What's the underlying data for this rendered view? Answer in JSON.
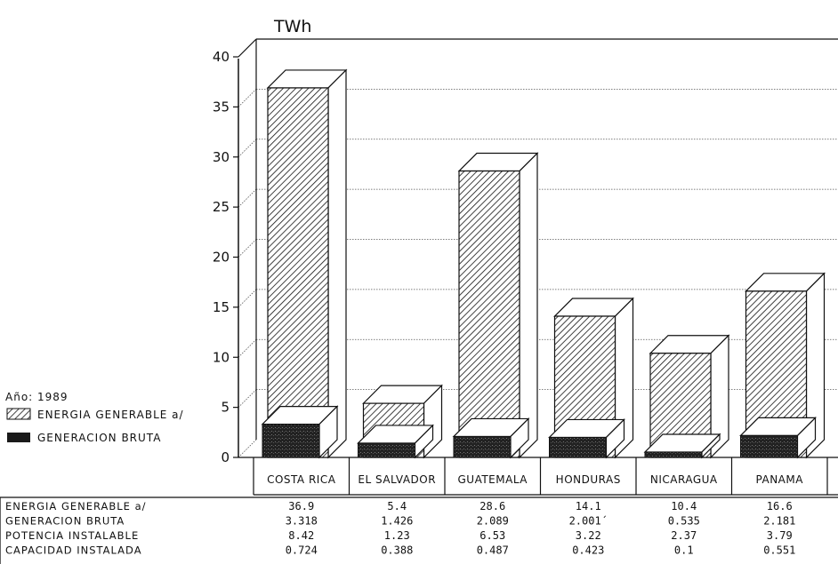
{
  "chart_data": {
    "type": "bar",
    "unit": "TWh",
    "ylim": [
      0,
      40
    ],
    "y_ticks": [
      "0",
      "5",
      "10",
      "15",
      "20",
      "25",
      "30",
      "35",
      "40"
    ],
    "categories": [
      "COSTA RICA",
      "EL SALVADOR",
      "GUATEMALA",
      "HONDURAS",
      "NICARAGUA",
      "PANAMA"
    ],
    "series": [
      {
        "name": "ENERGIA GENERABLE a/",
        "values": [
          36.9,
          5.4,
          28.6,
          14.1,
          10.4,
          16.6
        ],
        "pattern": "diagonal-hatch"
      },
      {
        "name": "GENERACION BRUTA",
        "values": [
          3.318,
          1.426,
          2.089,
          2.001,
          0.535,
          2.181
        ],
        "pattern": "solid-dark"
      }
    ],
    "legend": {
      "year_label": "Año: 1989",
      "placement": "left"
    },
    "grid": true
  },
  "table": {
    "rows": [
      {
        "label": "ENERGIA GENERABLE a/",
        "values": [
          "36.9",
          "5.4",
          "28.6",
          "14.1",
          "10.4",
          "16.6"
        ]
      },
      {
        "label": "GENERACION BRUTA",
        "values": [
          "3.318",
          "1.426",
          "2.089",
          "2.001´",
          "0.535",
          "2.181"
        ]
      },
      {
        "label": "POTENCIA INSTALABLE",
        "values": [
          "8.42",
          "1.23",
          "6.53",
          "3.22",
          "2.37",
          "3.79"
        ]
      },
      {
        "label": "CAPACIDAD INSTALADA",
        "values": [
          "0.724",
          "0.388",
          "0.487",
          "0.423",
          "0.1",
          "0.551"
        ]
      }
    ]
  },
  "colors": {
    "ink": "#111111",
    "bar_face": "#ffffff",
    "dark_fill": "#2a2a2a",
    "grid": "#555555"
  }
}
